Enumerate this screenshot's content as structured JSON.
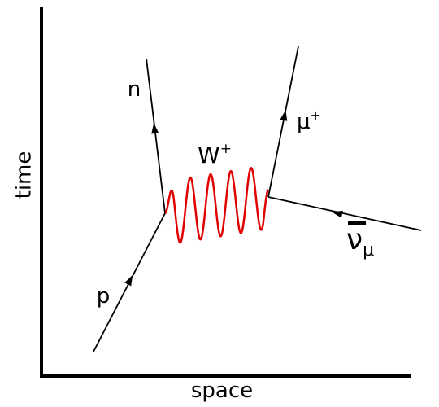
{
  "axes": {
    "vertical": "time",
    "horizontal": "space"
  },
  "particles": {
    "proton": {
      "symbol": "p"
    },
    "neutron": {
      "symbol": "n"
    },
    "boson": {
      "symbol": "W",
      "superscript": "+"
    },
    "muon": {
      "symbol": "μ",
      "superscript": "+"
    },
    "neutrino": {
      "symbol": "ν",
      "subscript": "μ"
    }
  }
}
